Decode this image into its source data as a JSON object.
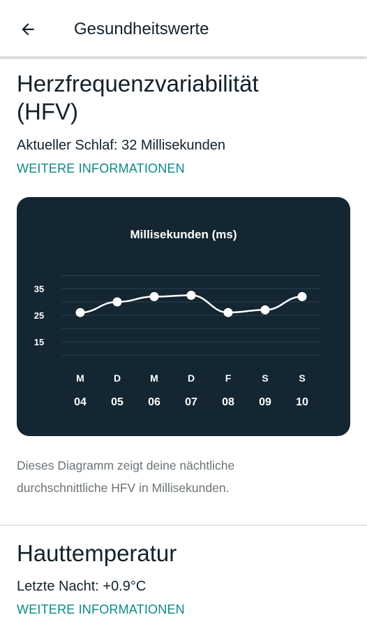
{
  "app_bar": {
    "title": "Gesundheitswerte",
    "back_icon": "arrow-left-icon"
  },
  "hrv": {
    "title_line1": "Herzfrequenzvariabilität",
    "title_line2": "(HFV)",
    "current": "Aktueller Schlaf: 32 Millisekunden",
    "more_link": "WEITERE INFORMATIONEN",
    "caption_line1": "Dieses Diagramm zeigt deine nächtliche",
    "caption_line2": "durchschnittliche HFV in Millisekunden."
  },
  "skin_temp": {
    "title": "Hauttemperatur",
    "last_night": "Letzte Nacht: +0.9°C",
    "more_link": "WEITERE INFORMATIONEN"
  },
  "colors": {
    "accent": "#0a8a85",
    "card_bg": "#132631",
    "grid": "#2e4350",
    "line": "#ffffff"
  },
  "chart_data": {
    "type": "line",
    "title": "Millisekunden (ms)",
    "categories": [
      "04",
      "05",
      "06",
      "07",
      "08",
      "09",
      "10"
    ],
    "weekdays": [
      "M",
      "D",
      "M",
      "D",
      "F",
      "S",
      "S"
    ],
    "y_ticks": [
      35,
      25,
      15
    ],
    "ylim": [
      10,
      40
    ],
    "series": [
      {
        "values": [
          26,
          30,
          32,
          32.5,
          26,
          27,
          32
        ]
      }
    ],
    "grid": true
  }
}
